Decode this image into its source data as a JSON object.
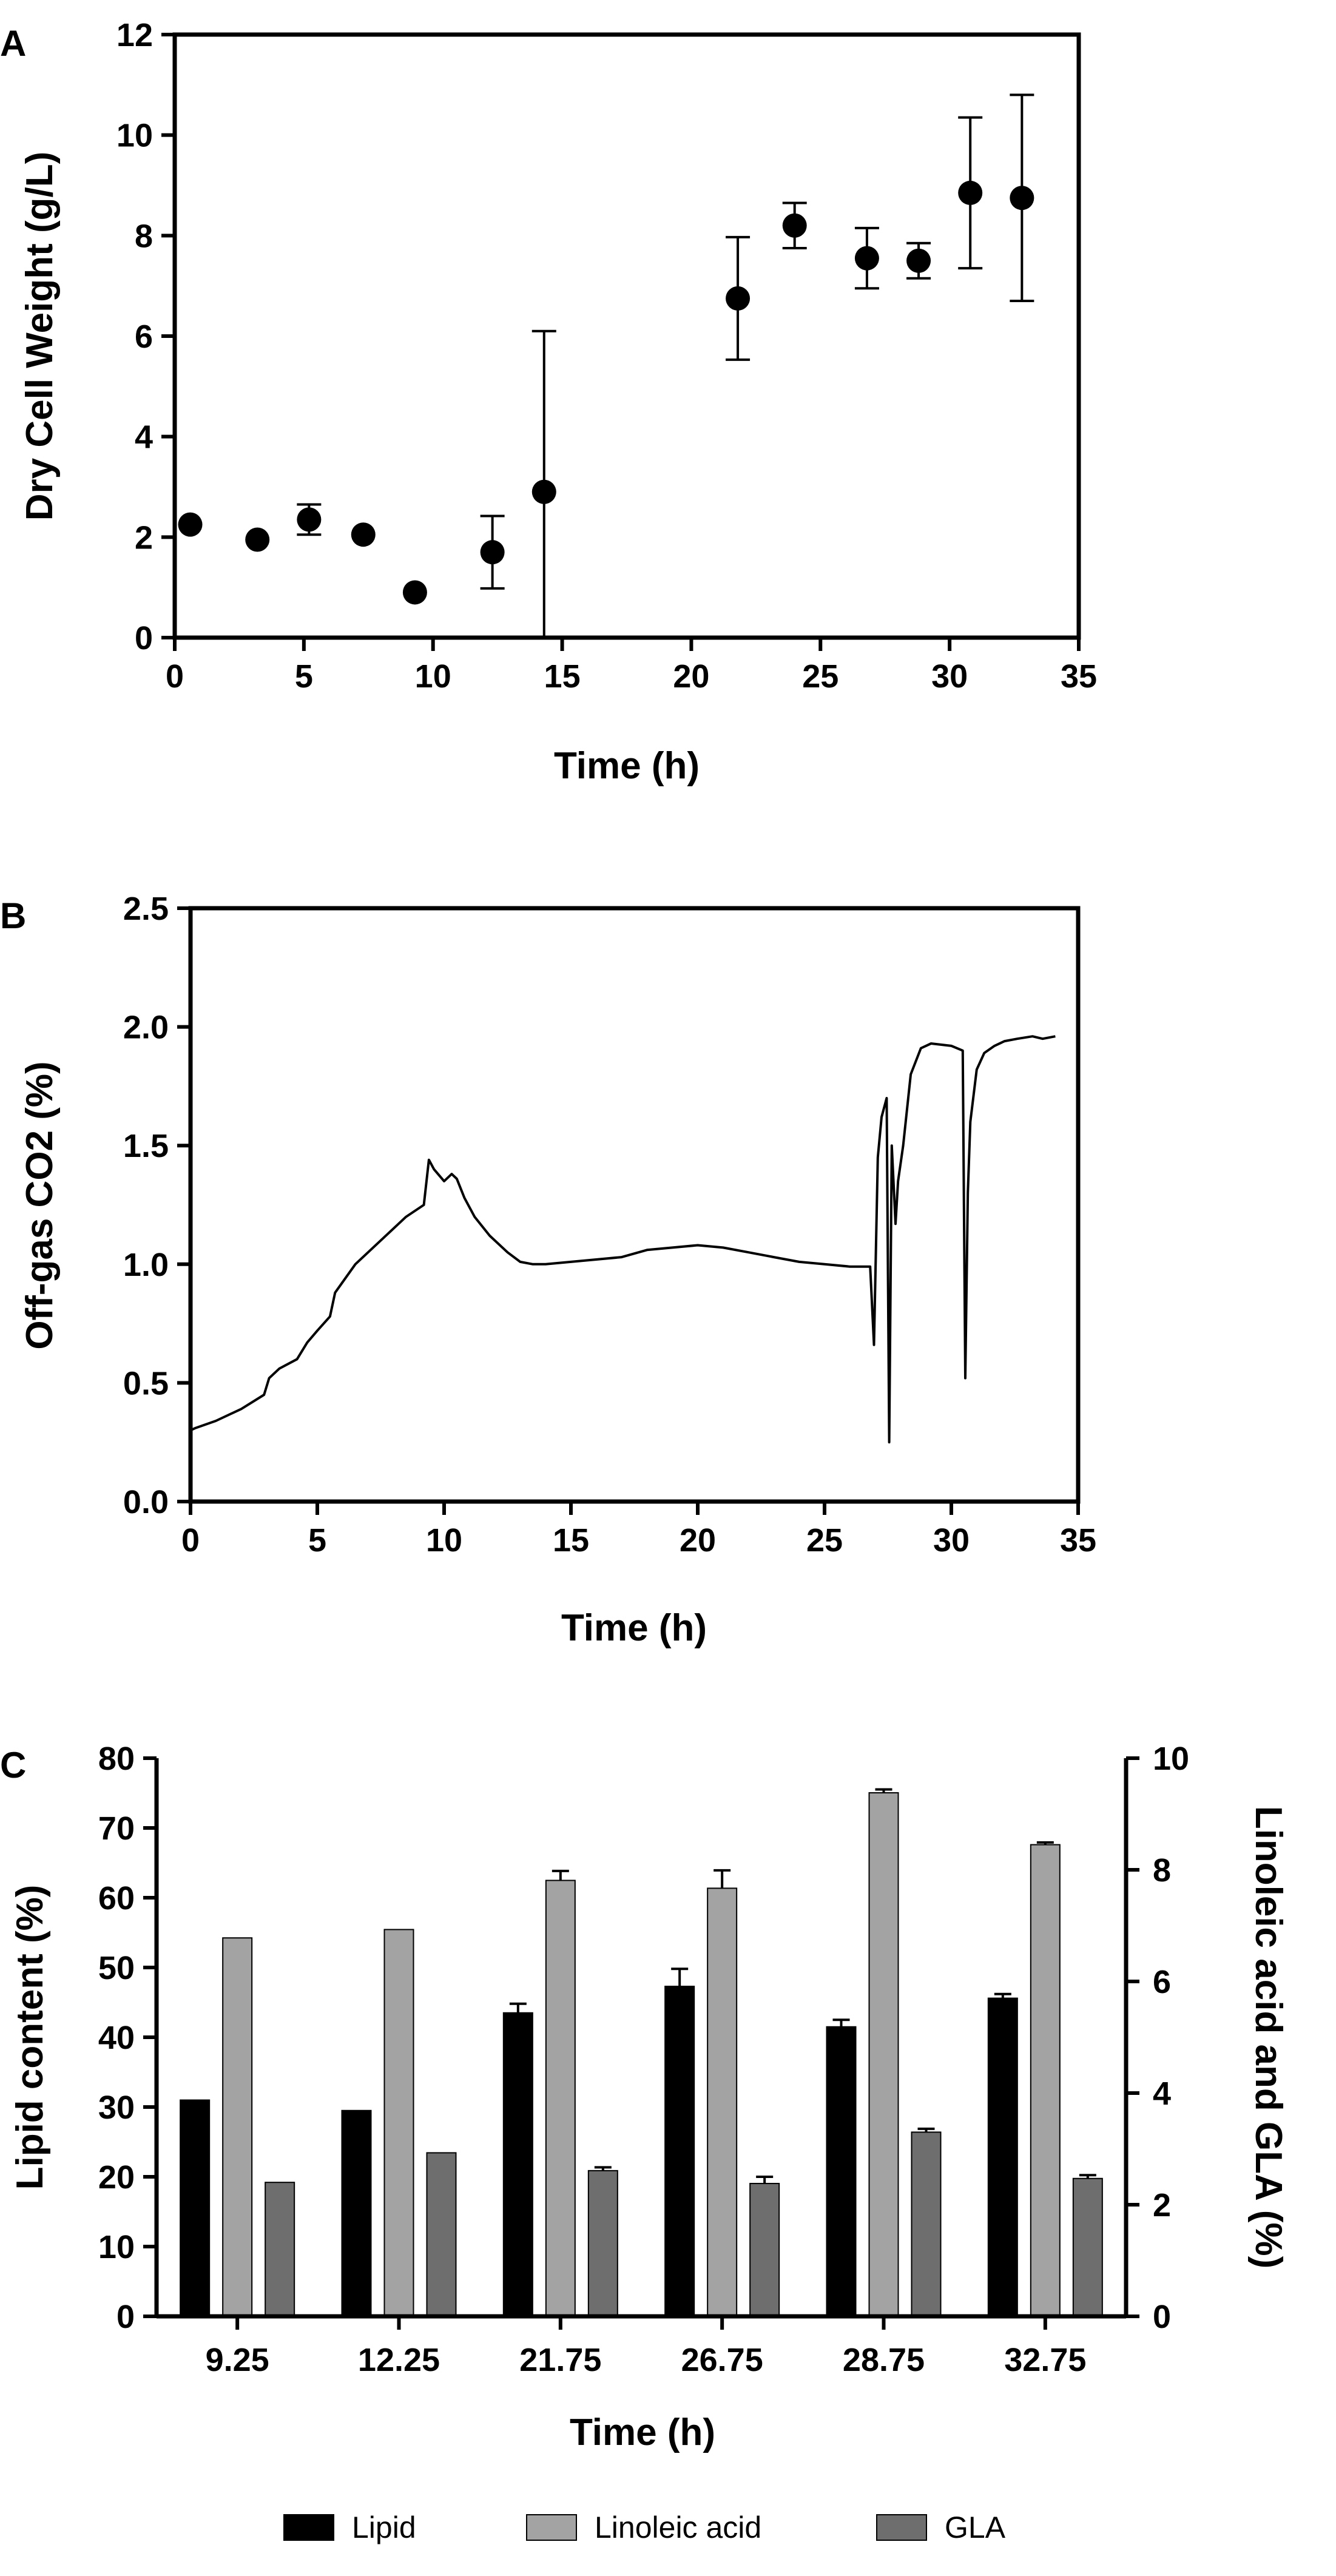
{
  "chart_data": [
    {
      "panel": "A",
      "type": "scatter",
      "xlabel": "Time (h)",
      "ylabel": "Dry Cell Weight (g/L)",
      "xlim": [
        0,
        35
      ],
      "ylim": [
        0,
        12
      ],
      "xticks": [
        0,
        5,
        10,
        15,
        20,
        25,
        30,
        35
      ],
      "yticks": [
        0,
        2,
        4,
        6,
        8,
        10,
        12
      ],
      "points": [
        {
          "x": 0.6,
          "y": 2.25,
          "err": 0.0
        },
        {
          "x": 3.2,
          "y": 1.95,
          "err": 0.0
        },
        {
          "x": 5.2,
          "y": 2.35,
          "err": 0.3
        },
        {
          "x": 7.3,
          "y": 2.05,
          "err": 0.0
        },
        {
          "x": 9.3,
          "y": 0.9,
          "err": 0.0
        },
        {
          "x": 12.3,
          "y": 1.7,
          "err": 0.72
        },
        {
          "x": 14.3,
          "y": 2.9,
          "err": 3.2
        },
        {
          "x": 21.8,
          "y": 6.75,
          "err": 1.22
        },
        {
          "x": 24.0,
          "y": 8.2,
          "err": 0.45
        },
        {
          "x": 26.8,
          "y": 7.55,
          "err": 0.6
        },
        {
          "x": 28.8,
          "y": 7.5,
          "err": 0.35
        },
        {
          "x": 30.8,
          "y": 8.85,
          "err": 1.5
        },
        {
          "x": 32.8,
          "y": 8.75,
          "err": 2.05
        }
      ]
    },
    {
      "panel": "B",
      "type": "line",
      "xlabel": "Time (h)",
      "ylabel": "Off-gas CO2 (%)",
      "xlim": [
        0,
        35
      ],
      "ylim": [
        0,
        2.5
      ],
      "xticks": [
        0,
        5,
        10,
        15,
        20,
        25,
        30,
        35
      ],
      "yticks": [
        "0.0",
        "0.5",
        "1.0",
        "1.5",
        "2.0",
        "2.5"
      ],
      "x": [
        0,
        0.2,
        1,
        2,
        2.9,
        3.1,
        3.5,
        4.2,
        4.6,
        5.0,
        5.5,
        5.7,
        6.5,
        7.5,
        8.5,
        9.2,
        9.4,
        9.6,
        10.0,
        10.3,
        10.5,
        10.8,
        11.2,
        11.8,
        12.5,
        13.0,
        13.5,
        14,
        15,
        16,
        17,
        18,
        19,
        20,
        21,
        22,
        23,
        24,
        25,
        26,
        26.8,
        26.95,
        27.1,
        27.25,
        27.45,
        27.55,
        27.65,
        27.8,
        27.9,
        28.1,
        28.4,
        28.8,
        29.2,
        30.0,
        30.45,
        30.55,
        30.65,
        30.75,
        31.0,
        31.3,
        31.7,
        32.1,
        32.6,
        33.2,
        33.6,
        34.1
      ],
      "y": [
        0.3,
        0.31,
        0.34,
        0.39,
        0.45,
        0.52,
        0.56,
        0.6,
        0.67,
        0.72,
        0.78,
        0.88,
        1.0,
        1.1,
        1.2,
        1.25,
        1.44,
        1.4,
        1.35,
        1.38,
        1.36,
        1.28,
        1.2,
        1.12,
        1.05,
        1.01,
        1.0,
        1.0,
        1.01,
        1.02,
        1.03,
        1.06,
        1.07,
        1.08,
        1.07,
        1.05,
        1.03,
        1.01,
        1.0,
        0.99,
        0.99,
        0.66,
        1.45,
        1.62,
        1.7,
        0.25,
        1.5,
        1.17,
        1.35,
        1.5,
        1.8,
        1.91,
        1.93,
        1.92,
        1.9,
        0.52,
        1.3,
        1.6,
        1.82,
        1.89,
        1.92,
        1.94,
        1.95,
        1.96,
        1.95,
        1.96
      ]
    },
    {
      "panel": "C",
      "type": "bar",
      "xlabel": "Time (h)",
      "ylabel": "Lipid content (%)",
      "y2label": "Linoleic acid and GLA (%)",
      "ylim": [
        0,
        80
      ],
      "y2lim": [
        0,
        10
      ],
      "yticks": [
        0,
        10,
        20,
        30,
        40,
        50,
        60,
        70,
        80
      ],
      "y2ticks": [
        0,
        2,
        4,
        6,
        8,
        10
      ],
      "categories": [
        "9.25",
        "12.25",
        "21.75",
        "26.75",
        "28.75",
        "32.75"
      ],
      "series": [
        {
          "name": "Lipid",
          "axis": "left",
          "color": "#000000",
          "values": [
            31.0,
            29.5,
            43.5,
            47.3,
            41.5,
            45.6
          ],
          "errors": [
            0,
            0,
            1.3,
            2.5,
            1.0,
            0.6
          ]
        },
        {
          "name": "Linoleic acid",
          "axis": "right",
          "color": "#a3a3a3",
          "values": [
            6.78,
            6.93,
            7.81,
            7.67,
            9.38,
            8.45
          ],
          "errors": [
            0,
            0,
            0.17,
            0.32,
            0.06,
            0.04
          ]
        },
        {
          "name": "GLA",
          "axis": "right",
          "color": "#6e6e6e",
          "values": [
            2.4,
            2.93,
            2.61,
            2.38,
            3.3,
            2.47
          ],
          "errors": [
            0,
            0,
            0.06,
            0.12,
            0.06,
            0.06
          ]
        }
      ],
      "legend": [
        "Lipid",
        "Linoleic acid",
        "GLA"
      ]
    }
  ]
}
